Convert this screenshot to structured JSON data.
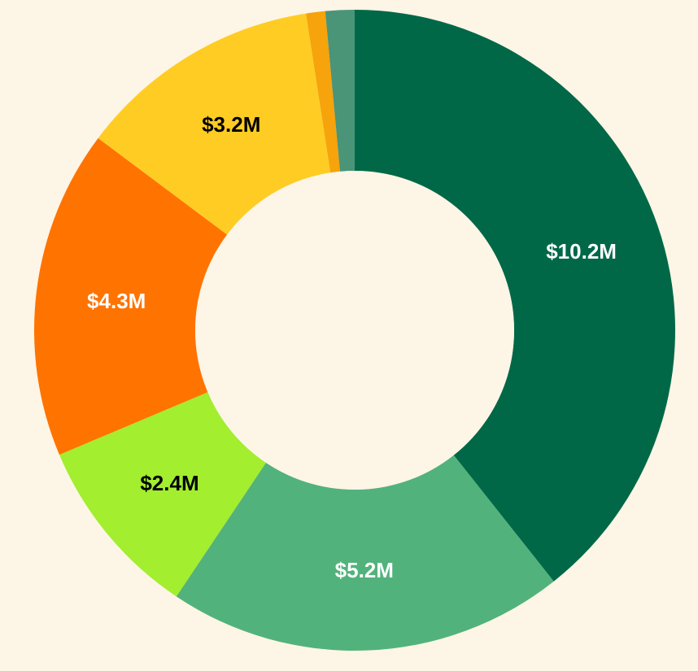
{
  "chart_data": {
    "type": "donut",
    "title": "",
    "unit": "$M",
    "slices": [
      {
        "label_text": "$10.2M",
        "value": 10.2,
        "color": "#006847",
        "label_color": "#ffffff"
      },
      {
        "label_text": "$5.2M",
        "value": 5.2,
        "color": "#52b27b",
        "label_color": "#ffffff"
      },
      {
        "label_text": "$2.4M",
        "value": 2.4,
        "color": "#a2ee2f",
        "label_color": "#000000"
      },
      {
        "label_text": "$4.3M",
        "value": 4.3,
        "color": "#ff7300",
        "label_color": "#ffffff"
      },
      {
        "label_text": "$3.2M",
        "value": 3.2,
        "color": "#ffcc24",
        "label_color": "#000000"
      },
      {
        "label_text": "",
        "value": 0.25,
        "color": "#f6a30c",
        "label_color": "#000000"
      },
      {
        "label_text": "",
        "value": 0.38,
        "color": "#4a9478",
        "label_color": "#ffffff"
      }
    ],
    "background_color": "#fdf5e6",
    "center_color": "#fdf5e6",
    "start": "top, clockwise",
    "legend": "none"
  }
}
